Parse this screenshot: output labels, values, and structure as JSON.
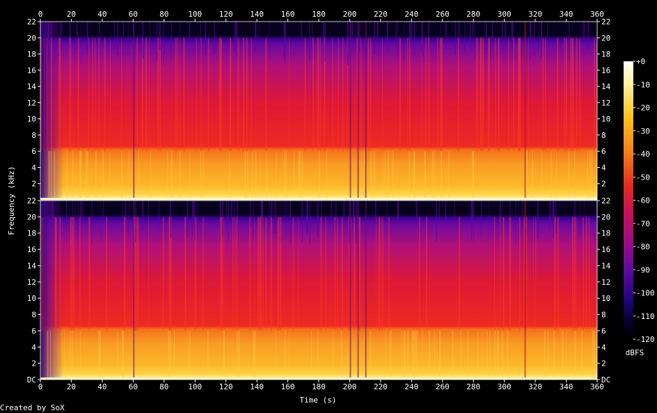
{
  "credit": "Created by SoX",
  "chart_data": {
    "type": "heatmap",
    "title": "",
    "xlabel": "Time (s)",
    "ylabel": "Frequency (kHz)",
    "xlim": [
      0,
      360
    ],
    "x_ticks": [
      "0",
      "20",
      "40",
      "60",
      "80",
      "100",
      "120",
      "140",
      "160",
      "180",
      "200",
      "220",
      "240",
      "260",
      "280",
      "300",
      "320",
      "340",
      "360"
    ],
    "channels": [
      {
        "name": "",
        "ylim": [
          0,
          22
        ],
        "y_ticks": [
          "22",
          "20",
          "18",
          "16",
          "14",
          "12",
          "10",
          "8",
          "6",
          "4",
          "2"
        ]
      },
      {
        "name": "",
        "ylim": [
          0,
          22
        ],
        "y_ticks": [
          "22",
          "20",
          "18",
          "16",
          "14",
          "12",
          "10",
          "8",
          "6",
          "4",
          "2",
          "DC"
        ]
      }
    ],
    "colorbar": {
      "label": "dBFS",
      "range": [
        -120,
        0
      ],
      "ticks": [
        "+0",
        "-10",
        "-20",
        "-30",
        "-40",
        "-50",
        "-60",
        "-70",
        "-80",
        "-90",
        "-100",
        "-110",
        "-120"
      ]
    },
    "features": {
      "lowpass_cutoff_khz": 20,
      "fade_in_end_s": 15,
      "loud_band_top_khz": 6
    }
  }
}
